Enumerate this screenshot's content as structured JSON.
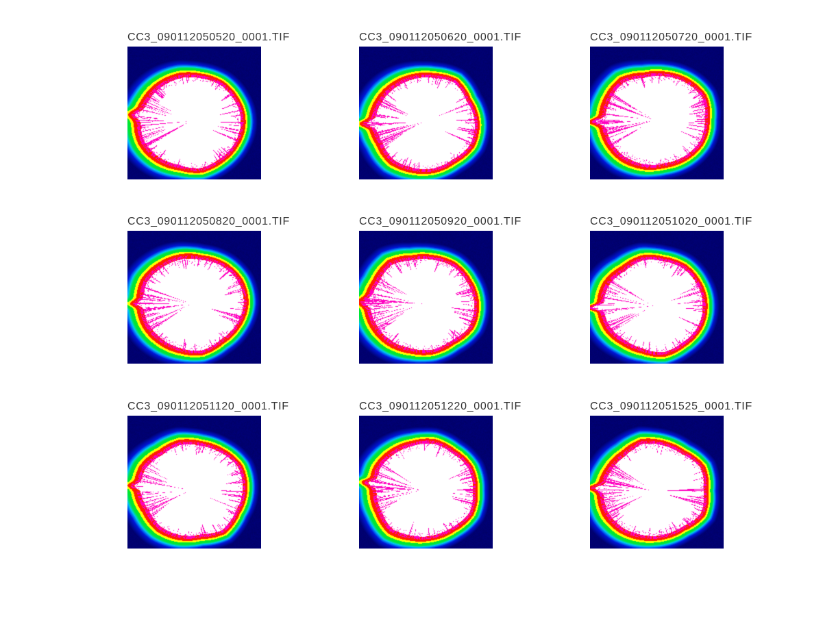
{
  "figure": {
    "background_color": "#ffffff",
    "title_text_color": "#333333"
  },
  "chart_data": {
    "type": "heatmap",
    "layout": {
      "grid": "3 rows x 3 columns montage",
      "axes_visible": false,
      "colorbar_visible": false,
      "legend": false
    },
    "subplots": [
      {
        "row": 1,
        "col": 1,
        "title": "CC3_090112050520_0001.TIF"
      },
      {
        "row": 1,
        "col": 2,
        "title": "CC3_090112050620_0001.TIF"
      },
      {
        "row": 1,
        "col": 3,
        "title": "CC3_090112050720_0001.TIF"
      },
      {
        "row": 2,
        "col": 1,
        "title": "CC3_090112050820_0001.TIF"
      },
      {
        "row": 2,
        "col": 2,
        "title": "CC3_090112050920_0001.TIF"
      },
      {
        "row": 2,
        "col": 3,
        "title": "CC3_090112051020_0001.TIF"
      },
      {
        "row": 3,
        "col": 1,
        "title": "CC3_090112051120_0001.TIF"
      },
      {
        "row": 3,
        "col": 2,
        "title": "CC3_090112051220_0001.TIF"
      },
      {
        "row": 3,
        "col": 3,
        "title": "CC3_090112051525_0001.TIF"
      }
    ],
    "image_content": "Each subplot is a false-color intensity image: a large white near-circular core on a dark navy background, ringed outward by magenta/red fringe, yellow, green, cyan and blue bands; jagged magenta filament structures extend into the white core, densest along the left edge.",
    "colormap_order_inner_to_outer": [
      "white core",
      "magenta fringe",
      "red",
      "yellow",
      "green",
      "cyan",
      "blue",
      "navy background"
    ]
  },
  "colors": {
    "background_navy": "#00006e",
    "blue": "#0018dc",
    "cyan": "#00ccff",
    "green": "#00e632",
    "yellow": "#ffff00",
    "red": "#ff1e00",
    "magenta": "#ff00c0",
    "white_core": "#ffffff"
  }
}
